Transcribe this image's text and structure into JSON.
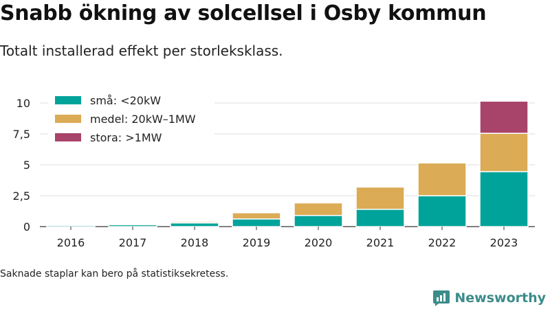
{
  "title": "Snabb ökning av solcellsel i Osby kommun",
  "subtitle": "Totalt installerad effekt per storleksklass.",
  "note": "Saknade staplar kan bero på statistiksekretess.",
  "brand": {
    "name": "Newsworthy",
    "logo_icon": "bar-chart-speech-bubble-icon",
    "color": "#3b8c8a"
  },
  "chart_data": {
    "type": "bar",
    "stacked": true,
    "categories": [
      "2016",
      "2017",
      "2018",
      "2019",
      "2020",
      "2021",
      "2022",
      "2023"
    ],
    "series": [
      {
        "name": "små: <20kW",
        "color": "#00a39a",
        "values": [
          0.1,
          0.15,
          0.3,
          0.62,
          0.9,
          1.4,
          2.5,
          4.45
        ]
      },
      {
        "name": "medel: 20kW–1MW",
        "color": "#dbab55",
        "values": [
          0,
          0.02,
          0.1,
          0.5,
          1.02,
          1.8,
          2.65,
          3.1
        ]
      },
      {
        "name": "stora: >1MW",
        "color": "#a8436a",
        "values": [
          0,
          0,
          0,
          0,
          0,
          0,
          0,
          2.6
        ]
      }
    ],
    "yticks": [
      "0",
      "2,5",
      "5",
      "7,5",
      "10"
    ],
    "ylim": [
      0,
      11.2
    ],
    "grid": true,
    "legend_position": "top-left"
  }
}
